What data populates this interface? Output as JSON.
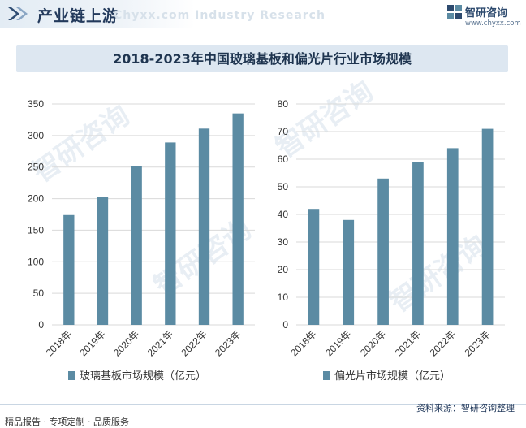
{
  "header": {
    "section_title": "产业链上游",
    "watermark_text": "Chyxx.com  Industry Research",
    "brand_name": "智研咨询",
    "brand_url": "www.chyxx.com"
  },
  "title": "2018-2023年中国玻璃基板和偏光片行业市场规模",
  "footer": {
    "left": "精品报告 · 专项定制 · 品质服务",
    "source": "资料来源：智研咨询整理"
  },
  "watermark": {
    "text": "智研咨询"
  },
  "colors": {
    "bar": "#5b8ba3",
    "grid": "#d9d9d9",
    "title_bg": "#dde7f1",
    "brand": "#2d4a6e"
  },
  "chart_data": [
    {
      "type": "bar",
      "categories": [
        "2018年",
        "2019年",
        "2020年",
        "2021年",
        "2022年",
        "2023年"
      ],
      "values": [
        174,
        203,
        252,
        289,
        311,
        335
      ],
      "series_name": "玻璃基板市场规模（亿元）",
      "ylim": [
        0,
        350
      ],
      "yticks": [
        0,
        50,
        100,
        150,
        200,
        250,
        300,
        350
      ],
      "grid": true,
      "legend": "bottom"
    },
    {
      "type": "bar",
      "categories": [
        "2018年",
        "2019年",
        "2020年",
        "2021年",
        "2022年",
        "2023年"
      ],
      "values": [
        42,
        38,
        53,
        59,
        64,
        71
      ],
      "series_name": "偏光片市场规模（亿元）",
      "ylim": [
        0,
        80
      ],
      "yticks": [
        0,
        10,
        20,
        30,
        40,
        50,
        60,
        70,
        80
      ],
      "grid": true,
      "legend": "bottom"
    }
  ]
}
